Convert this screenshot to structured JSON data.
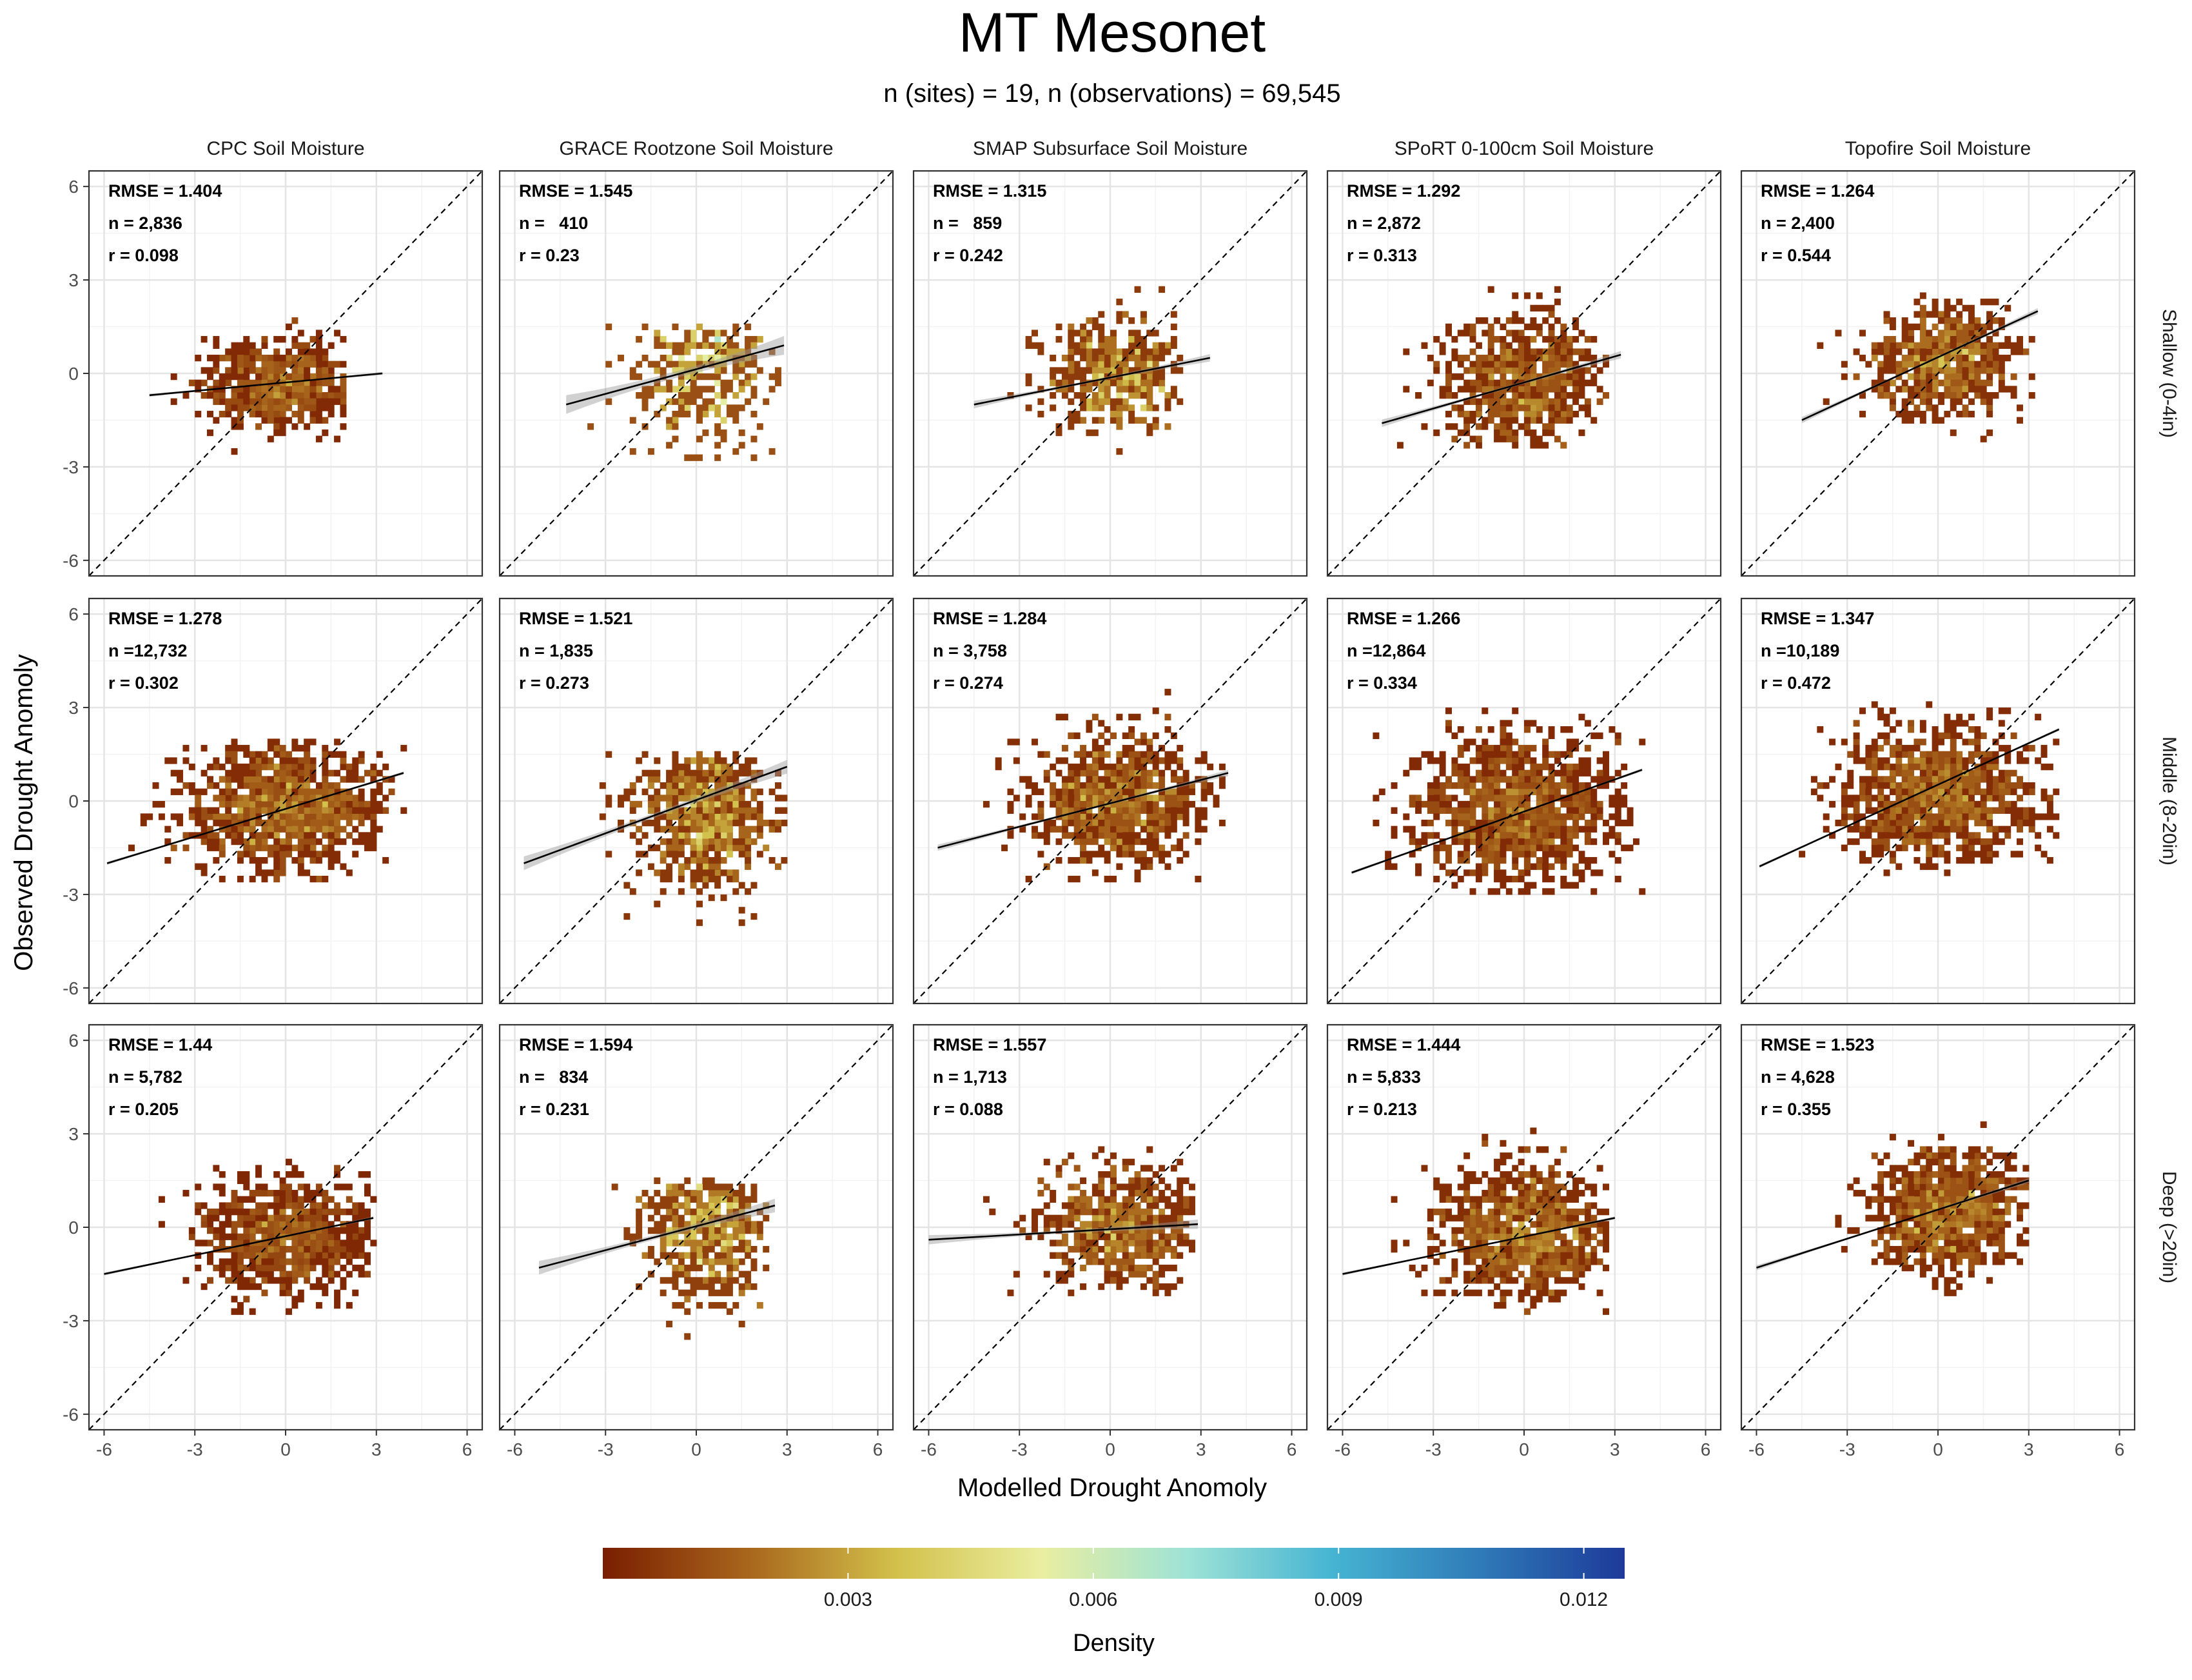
{
  "chart_data": {
    "type": "heatmap",
    "title": "MT Mesonet",
    "subtitle": "n (sites) = 19, n (observations) = 69,545",
    "xlabel": "Modelled Drought Anomoly",
    "ylabel": "Observed Drought Anomoly",
    "xlim": [
      -6.5,
      6.5
    ],
    "ylim": [
      -6.5,
      6.5
    ],
    "x_ticks": [
      "-6",
      "-3",
      "0",
      "3",
      "6"
    ],
    "y_ticks": [
      "-6",
      "-3",
      "0",
      "3",
      "6"
    ],
    "grid": true,
    "columns": [
      "CPC Soil Moisture",
      "GRACE Rootzone Soil Moisture",
      "SMAP Subsurface Soil Moisture",
      "SPoRT 0-100cm Soil Moisture",
      "Topofire Soil Moisture"
    ],
    "rows": [
      "Shallow (0-4in)",
      "Middle (8-20in)",
      "Deep (>20in)"
    ],
    "reference_line": "1:1 dashed",
    "legend": {
      "title": "Density",
      "position": "bottom",
      "ticks": [
        "0.003",
        "0.006",
        "0.009",
        "0.012"
      ],
      "tick_values": [
        0.003,
        0.006,
        0.009,
        0.012
      ],
      "range": [
        0,
        0.0125
      ],
      "colors": [
        "#7a1e00",
        "#a8661c",
        "#d2c04a",
        "#eaeea0",
        "#9ee3d6",
        "#46b4d2",
        "#2f7bb8",
        "#1d3a99"
      ]
    },
    "panels": [
      {
        "row": 0,
        "col": 0,
        "stats": [
          "RMSE = 1.404",
          "n = 2,836",
          "r = 0.098"
        ],
        "fit": {
          "x0": -4.5,
          "y0": -0.7,
          "x1": 3.2,
          "y1": 0.0
        },
        "band": 0.05,
        "cloud": {
          "cx": -0.2,
          "cy": -0.3,
          "sx": 1.3,
          "sy": 0.7,
          "xmin": -4.8,
          "xmax": 2.0,
          "ymin": -2.8,
          "ymax": 1.8,
          "n": 620,
          "hot": 0.22
        }
      },
      {
        "row": 0,
        "col": 1,
        "stats": [
          "RMSE = 1.545",
          "n =   410",
          "r = 0.23"
        ],
        "fit": {
          "x0": -4.3,
          "y0": -1.0,
          "x1": 2.9,
          "y1": 0.9
        },
        "band": 0.3,
        "cloud": {
          "cx": 0.3,
          "cy": 0.1,
          "sx": 1.2,
          "sy": 1.2,
          "xmin": -4.3,
          "xmax": 2.9,
          "ymin": -3.9,
          "ymax": 1.5,
          "n": 320,
          "hot": 0.5
        }
      },
      {
        "row": 0,
        "col": 2,
        "stats": [
          "RMSE = 1.315",
          "n =   859",
          "r = 0.242"
        ],
        "fit": {
          "x0": -4.5,
          "y0": -1.0,
          "x1": 3.3,
          "y1": 0.5
        },
        "band": 0.12,
        "cloud": {
          "cx": 0.2,
          "cy": 0.0,
          "sx": 1.2,
          "sy": 0.9,
          "xmin": -4.3,
          "xmax": 2.3,
          "ymin": -2.5,
          "ymax": 3.0,
          "n": 450,
          "hot": 0.35
        }
      },
      {
        "row": 0,
        "col": 3,
        "stats": [
          "RMSE = 1.292",
          "n = 2,872",
          "r = 0.313"
        ],
        "fit": {
          "x0": -4.7,
          "y0": -1.6,
          "x1": 3.2,
          "y1": 0.6
        },
        "band": 0.12,
        "cloud": {
          "cx": 0.0,
          "cy": -0.3,
          "sx": 1.3,
          "sy": 1.1,
          "xmin": -4.5,
          "xmax": 2.8,
          "ymin": -2.4,
          "ymax": 3.3,
          "n": 700,
          "hot": 0.25
        }
      },
      {
        "row": 0,
        "col": 4,
        "stats": [
          "RMSE = 1.264",
          "n = 2,400",
          "r = 0.544"
        ],
        "fit": {
          "x0": -4.5,
          "y0": -1.5,
          "x1": 3.3,
          "y1": 2.0
        },
        "band": 0.1,
        "cloud": {
          "cx": 0.2,
          "cy": 0.4,
          "sx": 1.2,
          "sy": 0.9,
          "xmin": -4.5,
          "xmax": 3.2,
          "ymin": -2.2,
          "ymax": 2.5,
          "n": 620,
          "hot": 0.3
        }
      },
      {
        "row": 1,
        "col": 0,
        "stats": [
          "RMSE = 1.278",
          "n =12,732",
          "r = 0.302"
        ],
        "fit": {
          "x0": -5.9,
          "y0": -2.0,
          "x1": 3.9,
          "y1": 0.9
        },
        "band": 0.05,
        "cloud": {
          "cx": 0.0,
          "cy": -0.2,
          "sx": 1.6,
          "sy": 1.0,
          "xmin": -5.8,
          "xmax": 3.9,
          "ymin": -2.9,
          "ymax": 2.0,
          "n": 1100,
          "hot": 0.25
        }
      },
      {
        "row": 1,
        "col": 1,
        "stats": [
          "RMSE = 1.521",
          "n = 1,835",
          "r = 0.273"
        ],
        "fit": {
          "x0": -5.7,
          "y0": -2.0,
          "x1": 3.0,
          "y1": 1.1
        },
        "band": 0.22,
        "cloud": {
          "cx": 0.3,
          "cy": -0.3,
          "sx": 1.1,
          "sy": 1.3,
          "xmin": -5.5,
          "xmax": 3.0,
          "ymin": -4.1,
          "ymax": 1.5,
          "n": 700,
          "hot": 0.35
        }
      },
      {
        "row": 1,
        "col": 2,
        "stats": [
          "RMSE = 1.284",
          "n = 3,758",
          "r = 0.274"
        ],
        "fit": {
          "x0": -5.7,
          "y0": -1.5,
          "x1": 3.9,
          "y1": 0.9
        },
        "band": 0.1,
        "cloud": {
          "cx": 0.2,
          "cy": 0.0,
          "sx": 1.4,
          "sy": 1.0,
          "xmin": -5.5,
          "xmax": 3.8,
          "ymin": -3.0,
          "ymax": 4.5,
          "n": 900,
          "hot": 0.25
        }
      },
      {
        "row": 1,
        "col": 3,
        "stats": [
          "RMSE = 1.266",
          "n =12,864",
          "r = 0.334"
        ],
        "fit": {
          "x0": -5.7,
          "y0": -2.3,
          "x1": 3.9,
          "y1": 1.0
        },
        "band": 0.05,
        "cloud": {
          "cx": -0.2,
          "cy": -0.3,
          "sx": 1.6,
          "sy": 1.2,
          "xmin": -5.7,
          "xmax": 3.9,
          "ymin": -3.0,
          "ymax": 3.3,
          "n": 1200,
          "hot": 0.22
        }
      },
      {
        "row": 1,
        "col": 4,
        "stats": [
          "RMSE = 1.347",
          "n =10,189",
          "r = 0.472"
        ],
        "fit": {
          "x0": -5.9,
          "y0": -2.1,
          "x1": 4.0,
          "y1": 2.3
        },
        "band": 0.05,
        "cloud": {
          "cx": 0.0,
          "cy": 0.2,
          "sx": 1.6,
          "sy": 1.1,
          "xmin": -5.9,
          "xmax": 4.0,
          "ymin": -2.3,
          "ymax": 3.3,
          "n": 1100,
          "hot": 0.22
        }
      },
      {
        "row": 2,
        "col": 0,
        "stats": [
          "RMSE = 1.44",
          "n = 5,782",
          "r = 0.205"
        ],
        "fit": {
          "x0": -6.0,
          "y0": -1.5,
          "x1": 2.9,
          "y1": 0.3
        },
        "band": 0.05,
        "cloud": {
          "cx": 0.0,
          "cy": -0.3,
          "sx": 1.4,
          "sy": 0.9,
          "xmin": -5.8,
          "xmax": 2.9,
          "ymin": -2.8,
          "ymax": 2.1,
          "n": 850,
          "hot": 0.22
        }
      },
      {
        "row": 2,
        "col": 1,
        "stats": [
          "RMSE = 1.594",
          "n =   834",
          "r = 0.231"
        ],
        "fit": {
          "x0": -5.2,
          "y0": -1.3,
          "x1": 2.6,
          "y1": 0.7
        },
        "band": 0.22,
        "cloud": {
          "cx": 0.3,
          "cy": 0.0,
          "sx": 1.1,
          "sy": 1.2,
          "xmin": -5.2,
          "xmax": 2.4,
          "ymin": -4.0,
          "ymax": 1.5,
          "n": 480,
          "hot": 0.4
        }
      },
      {
        "row": 2,
        "col": 2,
        "stats": [
          "RMSE = 1.557",
          "n = 1,713",
          "r = 0.088"
        ],
        "fit": {
          "x0": -6.0,
          "y0": -0.4,
          "x1": 2.9,
          "y1": 0.1
        },
        "band": 0.15,
        "cloud": {
          "cx": 0.3,
          "cy": 0.0,
          "sx": 1.3,
          "sy": 1.0,
          "xmin": -5.8,
          "xmax": 2.8,
          "ymin": -2.2,
          "ymax": 4.6,
          "n": 650,
          "hot": 0.3
        }
      },
      {
        "row": 2,
        "col": 3,
        "stats": [
          "RMSE = 1.444",
          "n = 5,833",
          "r = 0.213"
        ],
        "fit": {
          "x0": -6.0,
          "y0": -1.5,
          "x1": 3.0,
          "y1": 0.3
        },
        "band": 0.05,
        "cloud": {
          "cx": 0.0,
          "cy": -0.2,
          "sx": 1.4,
          "sy": 1.1,
          "xmin": -5.6,
          "xmax": 2.9,
          "ymin": -2.7,
          "ymax": 3.2,
          "n": 950,
          "hot": 0.22
        }
      },
      {
        "row": 2,
        "col": 4,
        "stats": [
          "RMSE = 1.523",
          "n = 4,628",
          "r = 0.355"
        ],
        "fit": {
          "x0": -6.0,
          "y0": -1.3,
          "x1": 3.0,
          "y1": 1.5
        },
        "band": 0.08,
        "cloud": {
          "cx": 0.3,
          "cy": 0.5,
          "sx": 1.3,
          "sy": 1.0,
          "xmin": -5.8,
          "xmax": 3.0,
          "ymin": -2.2,
          "ymax": 3.3,
          "n": 850,
          "hot": 0.25
        }
      }
    ]
  }
}
